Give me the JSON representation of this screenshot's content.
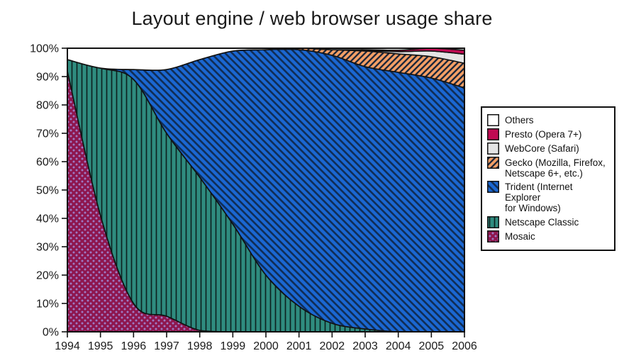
{
  "title": "Layout engine / web browser usage share",
  "colors": {
    "outline": "#111111",
    "axis": "#111111",
    "background": "#ffffff",
    "mosaic_fill": "#9d7bc6",
    "mosaic_hatch": "#8e164e",
    "netscape_fill": "#2f8c7f",
    "netscape_hatch": "#0d2220",
    "trident_fill": "#1b67d2",
    "trident_hatch": "#102c52",
    "gecko_fill": "#f5a066",
    "gecko_hatch": "#152238",
    "webcore_fill": "#e4e4e4",
    "presto_fill": "#c00a52",
    "others_fill": "#ffffff"
  },
  "chart_data": {
    "type": "area",
    "stacked": true,
    "grid": false,
    "unit": "%",
    "title": "Layout engine / web browser usage share",
    "xlabel": "",
    "ylabel": "",
    "ylim": [
      0,
      100
    ],
    "x": [
      1994,
      1995,
      1996,
      1997,
      1998,
      1999,
      2000,
      2001,
      2002,
      2003,
      2004,
      2005,
      2006
    ],
    "x_tick_labels": [
      "1994",
      "1995",
      "1996",
      "1997",
      "1998",
      "1999",
      "2000",
      "2001",
      "2002",
      "2003",
      "2004",
      "2005",
      "2006"
    ],
    "y_tick_labels": [
      "100%",
      "90%",
      "80%",
      "70%",
      "60%",
      "50%",
      "40%",
      "30%",
      "20%",
      "10%",
      "0%"
    ],
    "stack_order_bottom_to_top": [
      "mosaic",
      "netscape",
      "trident",
      "gecko",
      "webcore",
      "presto",
      "others"
    ],
    "series": [
      {
        "key": "mosaic",
        "name": "Mosaic",
        "pattern": "crosshatch",
        "values": [
          92,
          41,
          10,
          5.5,
          0.5,
          0,
          0,
          0,
          0,
          0,
          0,
          0,
          0
        ]
      },
      {
        "key": "netscape",
        "name": "Netscape Classic",
        "pattern": "vertical",
        "values": [
          4,
          52,
          79,
          64.5,
          54,
          38,
          20,
          9,
          3,
          1,
          0,
          0,
          0
        ]
      },
      {
        "key": "trident",
        "name": "Trident",
        "pattern": "diag-down",
        "values": [
          0,
          0,
          3.5,
          22.5,
          41.5,
          61,
          79.5,
          90.5,
          94.5,
          92.5,
          91.5,
          89.5,
          86
        ]
      },
      {
        "key": "gecko",
        "name": "Gecko",
        "pattern": "diag-up",
        "values": [
          0,
          0,
          0,
          0,
          0,
          0,
          0,
          0.5,
          2,
          5.5,
          6.5,
          7.5,
          8.7
        ]
      },
      {
        "key": "webcore",
        "name": "WebCore",
        "pattern": "solid",
        "values": [
          0,
          0,
          0,
          0,
          0,
          0,
          0,
          0,
          0,
          0.2,
          0.8,
          2,
          3.2
        ]
      },
      {
        "key": "presto",
        "name": "Presto",
        "pattern": "solid",
        "values": [
          0,
          0,
          0,
          0,
          0,
          0,
          0,
          0,
          0,
          0.3,
          0.5,
          1,
          1.4
        ]
      },
      {
        "key": "others",
        "name": "Others",
        "pattern": "solid",
        "values": [
          4,
          7,
          7.5,
          7.5,
          4,
          1,
          0.5,
          0,
          0.5,
          0.5,
          0.7,
          0,
          0.7
        ]
      }
    ]
  },
  "legend": {
    "position": "right",
    "items": [
      {
        "key": "others",
        "label": "Others"
      },
      {
        "key": "presto",
        "label": "Presto (Opera 7+)"
      },
      {
        "key": "webcore",
        "label": "WebCore (Safari)"
      },
      {
        "key": "gecko",
        "label": "Gecko (Mozilla, Firefox,\nNetscape 6+, etc.)"
      },
      {
        "key": "trident",
        "label": "Trident (Internet Explorer\nfor Windows)"
      },
      {
        "key": "netscape",
        "label": "Netscape Classic"
      },
      {
        "key": "mosaic",
        "label": "Mosaic"
      }
    ]
  }
}
